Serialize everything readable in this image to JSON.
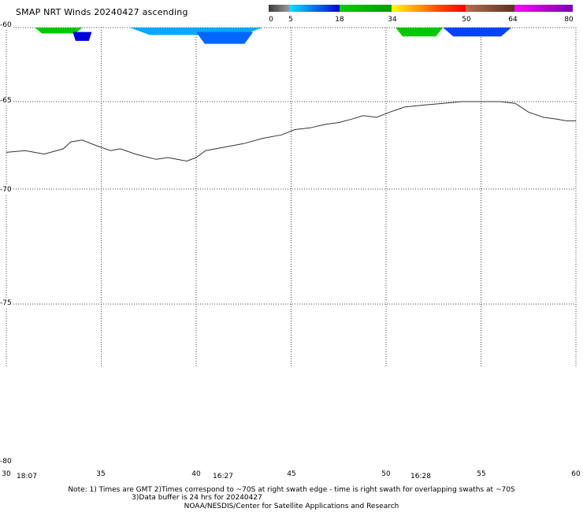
{
  "title": "SMAP NRT Winds 20240427 ascending",
  "colorbar": {
    "segments": [
      {
        "from": 0,
        "to": 5,
        "color": "#555555"
      },
      {
        "from": 5,
        "to": 18,
        "color": "#0088ff"
      },
      {
        "from": 18,
        "to": 34,
        "color": "#00b400"
      },
      {
        "from": 34,
        "to": 50,
        "color": "#ff3300"
      },
      {
        "from": 50,
        "to": 64,
        "color": "#8a4a2a"
      },
      {
        "from": 64,
        "to": 80,
        "color": "#9900cc"
      }
    ],
    "gradients": {
      "0-5": [
        "#3a3a3a",
        "#9a9a9a"
      ],
      "5-18": [
        "#00e5ff",
        "#0000dd"
      ],
      "18-34": [
        "#00d000",
        "#009a00"
      ],
      "34-50": [
        "#ffff00",
        "#ffa000",
        "#ff4000",
        "#ff0000"
      ],
      "50-64": [
        "#b07050",
        "#603020"
      ],
      "64-80": [
        "#ff00ff",
        "#7a00b0"
      ]
    },
    "tick_labels": [
      "0",
      "5",
      "18",
      "34",
      "50",
      "64",
      "80"
    ]
  },
  "lat_labels": [
    "-60",
    "-65",
    "-70",
    "-75",
    "-80"
  ],
  "lon_labels": [
    "30",
    "35",
    "40",
    "45",
    "50",
    "55",
    "60"
  ],
  "time_labels": [
    "18:07",
    "16:27",
    "16:28"
  ],
  "notes": {
    "line1": "Note: 1) Times are GMT 2)Times correspond to ~70S at right swath edge - time is right swath for overlapping swaths at ~70S",
    "line2": "3)Data buffer is 24 hrs for 20240427",
    "line3": "NOAA/NESDIS/Center for Satellite Applications and Research"
  },
  "map_data": {
    "lon_range": [
      30,
      60
    ],
    "lat_range": [
      -80,
      -60
    ],
    "coastline": [
      [
        30.0,
        -67.9
      ],
      [
        31.0,
        -67.8
      ],
      [
        32.0,
        -68.0
      ],
      [
        33.0,
        -67.7
      ],
      [
        33.4,
        -67.3
      ],
      [
        34.0,
        -67.2
      ],
      [
        34.7,
        -67.5
      ],
      [
        35.5,
        -67.8
      ],
      [
        36.0,
        -67.7
      ],
      [
        36.8,
        -68.0
      ],
      [
        37.5,
        -68.2
      ],
      [
        37.9,
        -68.3
      ],
      [
        38.5,
        -68.2
      ],
      [
        39.0,
        -68.3
      ],
      [
        39.5,
        -68.4
      ],
      [
        40.0,
        -68.2
      ],
      [
        40.5,
        -67.8
      ],
      [
        41.5,
        -67.6
      ],
      [
        42.5,
        -67.4
      ],
      [
        43.5,
        -67.1
      ],
      [
        44.5,
        -66.9
      ],
      [
        45.2,
        -66.6
      ],
      [
        46.0,
        -66.5
      ],
      [
        46.8,
        -66.3
      ],
      [
        47.5,
        -66.2
      ],
      [
        48.2,
        -66.0
      ],
      [
        48.8,
        -65.8
      ],
      [
        49.5,
        -65.9
      ],
      [
        50.2,
        -65.6
      ],
      [
        51.0,
        -65.3
      ],
      [
        52.0,
        -65.2
      ],
      [
        53.0,
        -65.1
      ],
      [
        54.0,
        -65.0
      ],
      [
        55.0,
        -65.0
      ],
      [
        56.0,
        -65.0
      ],
      [
        56.8,
        -65.1
      ],
      [
        57.5,
        -65.6
      ],
      [
        58.3,
        -65.9
      ],
      [
        59.0,
        -66.0
      ],
      [
        59.5,
        -66.1
      ],
      [
        60.0,
        -66.1
      ]
    ],
    "swaths": [
      {
        "color": "#00c800",
        "lon_range": [
          31.5,
          34.0
        ],
        "lat_range": [
          -60.0,
          -60.4
        ]
      },
      {
        "color": "#0000dd",
        "lon_range": [
          33.5,
          34.5
        ],
        "lat_range": [
          -60.3,
          -60.9
        ]
      },
      {
        "color": "#00aaff",
        "lon_range": [
          36.5,
          43.5
        ],
        "lat_range": [
          -60.0,
          -60.5
        ]
      },
      {
        "color": "#0066ff",
        "lon_range": [
          40.0,
          43.0
        ],
        "lat_range": [
          -60.3,
          -61.1
        ]
      },
      {
        "color": "#00c800",
        "lon_range": [
          50.5,
          53.0
        ],
        "lat_range": [
          -60.0,
          -60.6
        ]
      },
      {
        "color": "#0044ff",
        "lon_range": [
          53.0,
          56.6
        ],
        "lat_range": [
          -60.0,
          -60.6
        ]
      }
    ]
  }
}
